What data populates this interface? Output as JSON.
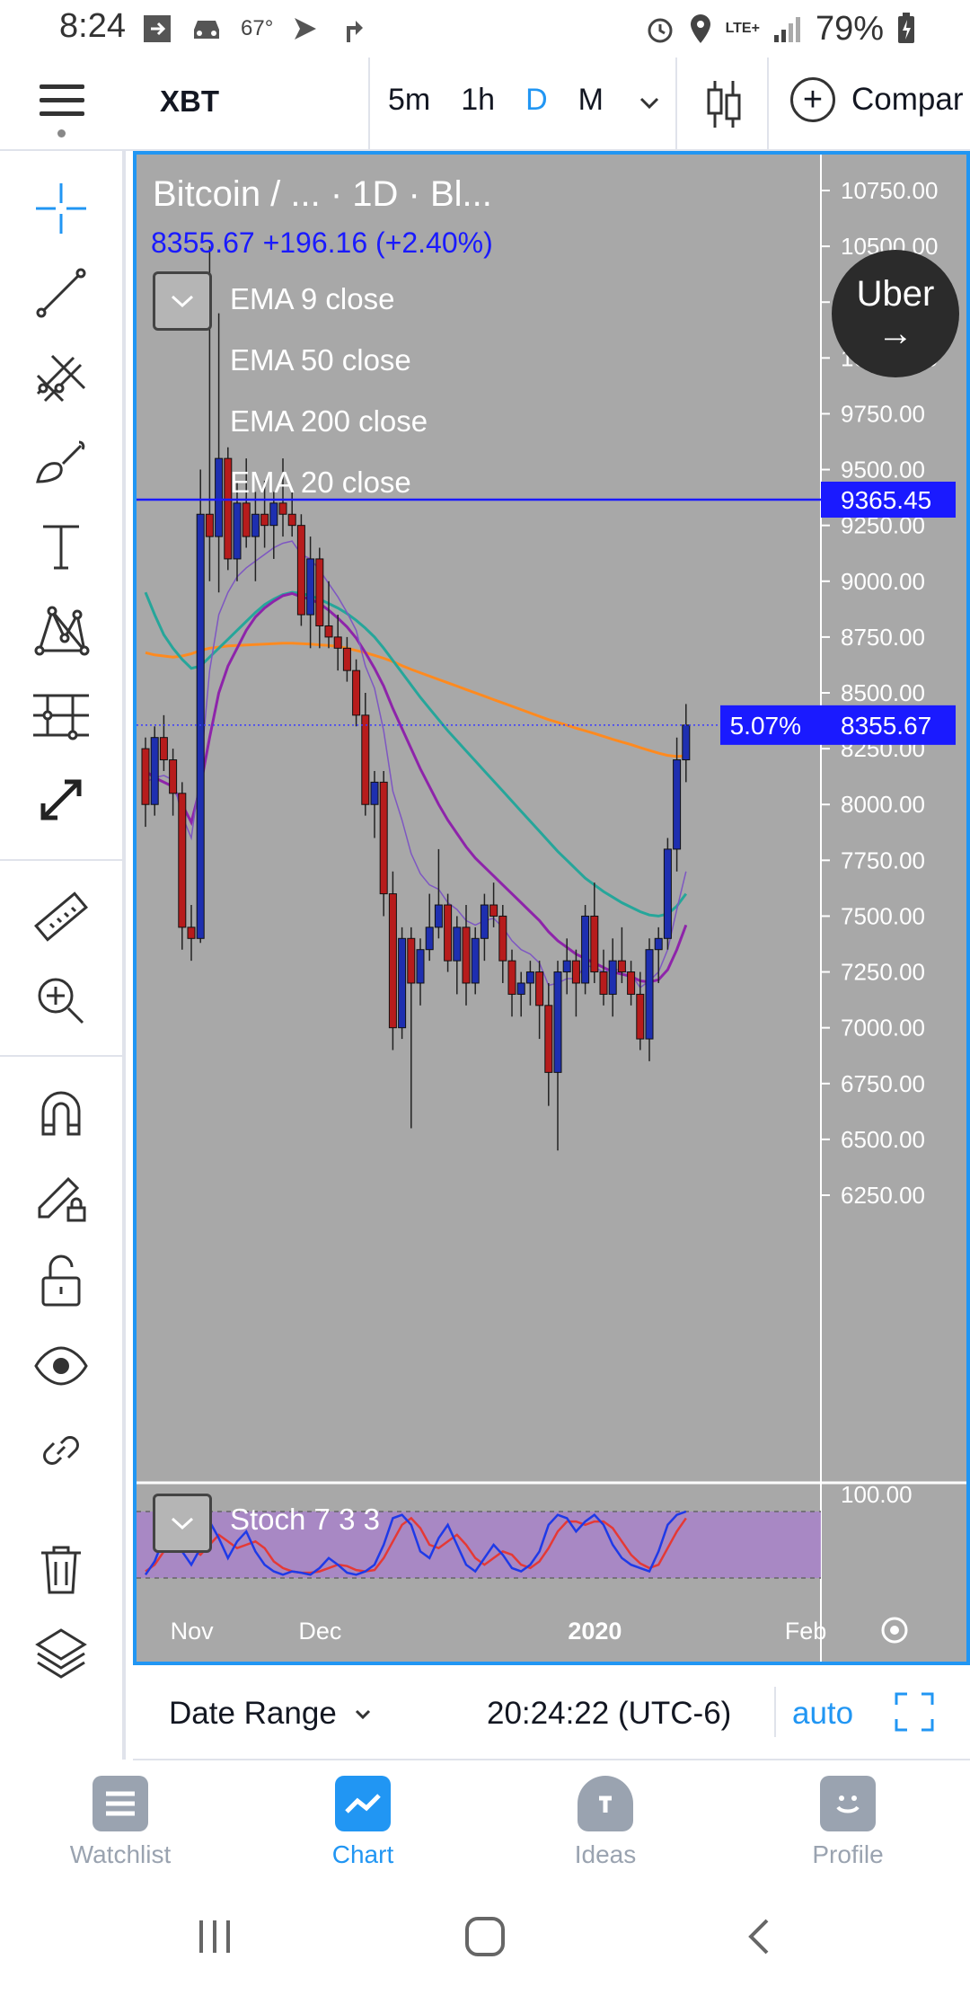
{
  "status_bar": {
    "time": "8:24",
    "temperature": "67°",
    "network": "LTE+",
    "battery": "79%"
  },
  "header": {
    "symbol": "XBT",
    "intervals": [
      "5m",
      "1h",
      "D",
      "M"
    ],
    "active_interval": "D",
    "compare_label": "Compar"
  },
  "toolbar": {
    "tools": [
      "crosshair-icon",
      "trend-line-icon",
      "fib-icon",
      "brush-icon",
      "text-icon",
      "pattern-icon",
      "measure-tools-icon",
      "arrows-icon",
      "ruler-icon",
      "zoom-in-icon",
      "magnet-icon",
      "lock-drawing-icon",
      "unlock-icon",
      "eye-icon",
      "link-icon",
      "trash-icon",
      "layers-icon"
    ]
  },
  "chart": {
    "title": "Bitcoin / ...     · 1D · Bl...",
    "price_line": "8355.67  +196.16 (+2.40%)",
    "indicators": [
      "EMA 9 close",
      "EMA 50 close",
      "EMA 200 close",
      "EMA 20 close"
    ],
    "stoch_label": "Stoch 7 3 3",
    "stoch_axis_label": "100.00",
    "horizontal_line_label": "9365.45",
    "last_price_label": "8355.67",
    "last_price_pct": "5.07%",
    "uber_label": "Uber",
    "colors": {
      "background": "#a8a8a8",
      "up_candle": "#1e2fb0",
      "down_candle": "#b71c1c",
      "ema9": "#7e57c2",
      "ema20": "#8e24aa",
      "ema50": "#26a69a",
      "ema200": "#ff8a1f",
      "horizontal_line": "#1a1aff"
    }
  },
  "chart_data": {
    "type": "candlestick",
    "title": "Bitcoin / ... · 1D · Bl...",
    "y_axis_ticks": [
      "10750.00",
      "10500.00",
      "10250.00",
      "10000.00",
      "9750.00",
      "9500.00",
      "9250.00",
      "9000.00",
      "8750.00",
      "8500.00",
      "8250.00",
      "8000.00",
      "7750.00",
      "7500.00",
      "7250.00",
      "7000.00",
      "6750.00",
      "6500.00",
      "6250.00"
    ],
    "ylim": [
      6000,
      10900
    ],
    "x_axis_ticks": [
      "Nov",
      "Dec",
      "2020",
      "Feb"
    ],
    "horizontal_line": 9365.45,
    "last_price": 8355.67,
    "candles_ohlc": [
      [
        8250,
        8300,
        7900,
        8000
      ],
      [
        8000,
        8350,
        7950,
        8300
      ],
      [
        8300,
        8400,
        8150,
        8200
      ],
      [
        8200,
        8250,
        7950,
        8050
      ],
      [
        8050,
        8100,
        7350,
        7450
      ],
      [
        7450,
        7550,
        7300,
        7400
      ],
      [
        7400,
        9500,
        7380,
        9300
      ],
      [
        9300,
        10500,
        9000,
        9200
      ],
      [
        9200,
        10200,
        8950,
        9550
      ],
      [
        9550,
        9600,
        9050,
        9100
      ],
      [
        9100,
        9450,
        9000,
        9350
      ],
      [
        9350,
        9550,
        9150,
        9200
      ],
      [
        9200,
        9400,
        9000,
        9300
      ],
      [
        9300,
        9450,
        9150,
        9250
      ],
      [
        9250,
        9400,
        9100,
        9350
      ],
      [
        9350,
        9550,
        9200,
        9300
      ],
      [
        9300,
        9400,
        9200,
        9250
      ],
      [
        9250,
        9300,
        8800,
        8850
      ],
      [
        8850,
        9200,
        8700,
        9100
      ],
      [
        9100,
        9150,
        8700,
        8800
      ],
      [
        8800,
        9000,
        8700,
        8750
      ],
      [
        8750,
        8850,
        8600,
        8700
      ],
      [
        8700,
        8750,
        8550,
        8600
      ],
      [
        8600,
        8650,
        8350,
        8400
      ],
      [
        8400,
        8500,
        7950,
        8000
      ],
      [
        8000,
        8150,
        7850,
        8100
      ],
      [
        8100,
        8150,
        7500,
        7600
      ],
      [
        7600,
        7700,
        6900,
        7000
      ],
      [
        7000,
        7450,
        6950,
        7400
      ],
      [
        7400,
        7450,
        6550,
        7200
      ],
      [
        7200,
        7400,
        7100,
        7350
      ],
      [
        7350,
        7600,
        7300,
        7450
      ],
      [
        7450,
        7800,
        7400,
        7550
      ],
      [
        7550,
        7600,
        7250,
        7300
      ],
      [
        7300,
        7500,
        7150,
        7450
      ],
      [
        7450,
        7550,
        7100,
        7200
      ],
      [
        7200,
        7450,
        7150,
        7400
      ],
      [
        7400,
        7600,
        7300,
        7550
      ],
      [
        7550,
        7650,
        7450,
        7500
      ],
      [
        7500,
        7550,
        7200,
        7300
      ],
      [
        7300,
        7350,
        7050,
        7150
      ],
      [
        7150,
        7250,
        7050,
        7200
      ],
      [
        7200,
        7300,
        7100,
        7250
      ],
      [
        7250,
        7300,
        6950,
        7100
      ],
      [
        7100,
        7200,
        6650,
        6800
      ],
      [
        6800,
        7300,
        6450,
        7250
      ],
      [
        7250,
        7400,
        7150,
        7300
      ],
      [
        7300,
        7350,
        7050,
        7200
      ],
      [
        7200,
        7550,
        7150,
        7500
      ],
      [
        7500,
        7650,
        7200,
        7250
      ],
      [
        7250,
        7350,
        7100,
        7150
      ],
      [
        7150,
        7400,
        7050,
        7300
      ],
      [
        7300,
        7450,
        7200,
        7250
      ],
      [
        7250,
        7300,
        7100,
        7150
      ],
      [
        7150,
        7250,
        6900,
        6950
      ],
      [
        6950,
        7400,
        6850,
        7350
      ],
      [
        7350,
        7450,
        7200,
        7400
      ],
      [
        7400,
        7850,
        7350,
        7800
      ],
      [
        7800,
        8300,
        7700,
        8200
      ],
      [
        8200,
        8450,
        8100,
        8355.67
      ]
    ],
    "ema200": [
      8680,
      8670,
      8665,
      8660,
      8665,
      8675,
      8690,
      8700,
      8705,
      8710,
      8712,
      8714,
      8716,
      8718,
      8720,
      8722,
      8722,
      8720,
      8718,
      8715,
      8712,
      8708,
      8700,
      8690,
      8680,
      8668,
      8655,
      8640,
      8622,
      8605,
      8590,
      8575,
      8560,
      8545,
      8530,
      8515,
      8500,
      8485,
      8470,
      8455,
      8440,
      8425,
      8410,
      8395,
      8380,
      8368,
      8355,
      8342,
      8330,
      8318,
      8305,
      8292,
      8280,
      8268,
      8255,
      8242,
      8230,
      8220,
      8215,
      8218
    ],
    "ema50": [
      8950,
      8850,
      8760,
      8700,
      8650,
      8610,
      8620,
      8660,
      8700,
      8740,
      8780,
      8820,
      8860,
      8895,
      8920,
      8940,
      8950,
      8945,
      8935,
      8920,
      8900,
      8880,
      8855,
      8825,
      8790,
      8750,
      8700,
      8645,
      8590,
      8535,
      8480,
      8430,
      8380,
      8330,
      8285,
      8240,
      8195,
      8150,
      8105,
      8060,
      8015,
      7970,
      7925,
      7880,
      7835,
      7790,
      7750,
      7710,
      7670,
      7640,
      7610,
      7585,
      7560,
      7540,
      7520,
      7505,
      7500,
      7510,
      7545,
      7600
    ],
    "ema20": [
      8150,
      8120,
      8100,
      8080,
      8000,
      7920,
      8080,
      8300,
      8500,
      8620,
      8700,
      8780,
      8840,
      8880,
      8910,
      8935,
      8945,
      8930,
      8920,
      8900,
      8870,
      8835,
      8795,
      8745,
      8680,
      8610,
      8530,
      8430,
      8340,
      8250,
      8160,
      8080,
      8000,
      7930,
      7870,
      7810,
      7760,
      7720,
      7680,
      7640,
      7600,
      7560,
      7520,
      7480,
      7430,
      7390,
      7360,
      7330,
      7310,
      7290,
      7270,
      7250,
      7240,
      7230,
      7210,
      7205,
      7215,
      7260,
      7350,
      7460
    ],
    "ema9": [
      8100,
      8120,
      8130,
      8110,
      7950,
      7850,
      8150,
      8600,
      8850,
      8950,
      9020,
      9060,
      9090,
      9120,
      9150,
      9170,
      9180,
      9120,
      9100,
      9050,
      8990,
      8930,
      8860,
      8780,
      8620,
      8520,
      8330,
      8060,
      7930,
      7780,
      7690,
      7640,
      7620,
      7560,
      7530,
      7480,
      7460,
      7480,
      7490,
      7450,
      7390,
      7350,
      7330,
      7290,
      7190,
      7200,
      7220,
      7220,
      7280,
      7270,
      7250,
      7260,
      7260,
      7240,
      7180,
      7210,
      7250,
      7350,
      7530,
      7700
    ],
    "stoch_k": [
      5,
      25,
      60,
      80,
      40,
      20,
      45,
      85,
      60,
      30,
      55,
      70,
      40,
      20,
      10,
      5,
      10,
      8,
      5,
      15,
      30,
      20,
      8,
      5,
      10,
      20,
      50,
      90,
      95,
      80,
      40,
      30,
      60,
      80,
      50,
      20,
      10,
      30,
      50,
      35,
      15,
      10,
      20,
      40,
      80,
      95,
      90,
      70,
      85,
      95,
      80,
      50,
      30,
      20,
      15,
      10,
      40,
      80,
      95,
      100
    ],
    "stoch_d": [
      10,
      20,
      40,
      60,
      60,
      45,
      35,
      50,
      65,
      55,
      45,
      50,
      55,
      45,
      25,
      15,
      10,
      8,
      8,
      10,
      15,
      20,
      18,
      12,
      10,
      12,
      30,
      55,
      80,
      90,
      75,
      50,
      45,
      55,
      65,
      50,
      30,
      20,
      30,
      40,
      35,
      20,
      15,
      25,
      45,
      70,
      85,
      85,
      80,
      85,
      85,
      75,
      55,
      35,
      22,
      15,
      20,
      45,
      70,
      90
    ],
    "stoch_range": [
      0,
      100
    ]
  },
  "chart_bottom": {
    "date_range_label": "Date Range",
    "time": "20:24:22 (UTC-6)",
    "auto_label": "auto"
  },
  "bottom_nav": {
    "items": [
      {
        "label": "Watchlist",
        "icon": "watchlist-icon",
        "active": false
      },
      {
        "label": "Chart",
        "icon": "chart-icon",
        "active": true
      },
      {
        "label": "Ideas",
        "icon": "ideas-icon",
        "active": false
      },
      {
        "label": "Profile",
        "icon": "profile-icon",
        "active": false
      }
    ]
  }
}
